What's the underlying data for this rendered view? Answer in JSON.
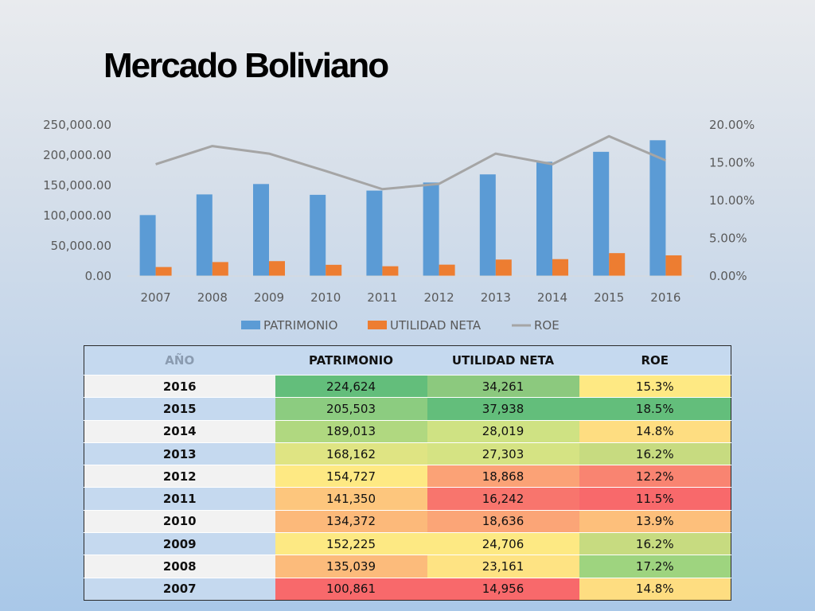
{
  "title": "Mercado Boliviano",
  "chart_data": {
    "type": "bar",
    "categories": [
      "2007",
      "2008",
      "2009",
      "2010",
      "2011",
      "2012",
      "2013",
      "2014",
      "2015",
      "2016"
    ],
    "series": [
      {
        "name": "PATRIMONIO",
        "kind": "bar",
        "axis": "left",
        "color": "#5b9bd5",
        "values": [
          100861,
          135039,
          152225,
          134372,
          141350,
          154727,
          168162,
          189013,
          205503,
          224624
        ]
      },
      {
        "name": "UTILIDAD NETA",
        "kind": "bar",
        "axis": "left",
        "color": "#ed7d31",
        "values": [
          14956,
          23161,
          24706,
          18636,
          16242,
          18868,
          27303,
          28019,
          37938,
          34261
        ]
      },
      {
        "name": "ROE",
        "kind": "line",
        "axis": "right",
        "color": "#a5a5a5",
        "values": [
          14.8,
          17.2,
          16.2,
          13.9,
          11.5,
          12.2,
          16.2,
          14.8,
          18.5,
          15.3
        ]
      }
    ],
    "left_axis": {
      "ticks": [
        "0.00",
        "50,000.00",
        "100,000.00",
        "150,000.00",
        "200,000.00",
        "250,000.00"
      ],
      "range": [
        0,
        250000
      ]
    },
    "right_axis": {
      "ticks": [
        "0.00%",
        "5.00%",
        "10.00%",
        "15.00%",
        "20.00%"
      ],
      "range": [
        0,
        20
      ]
    },
    "legend_position": "bottom",
    "grid": false
  },
  "table": {
    "headers": [
      "AÑO",
      "PATRIMONIO",
      "UTILIDAD NETA",
      "ROE"
    ],
    "rows": [
      {
        "year": "2016",
        "patrimonio": "224,624",
        "utilidad": "34,261",
        "roe": "15.3%"
      },
      {
        "year": "2015",
        "patrimonio": "205,503",
        "utilidad": "37,938",
        "roe": "18.5%"
      },
      {
        "year": "2014",
        "patrimonio": "189,013",
        "utilidad": "28,019",
        "roe": "14.8%"
      },
      {
        "year": "2013",
        "patrimonio": "168,162",
        "utilidad": "27,303",
        "roe": "16.2%"
      },
      {
        "year": "2012",
        "patrimonio": "154,727",
        "utilidad": "18,868",
        "roe": "12.2%"
      },
      {
        "year": "2011",
        "patrimonio": "141,350",
        "utilidad": "16,242",
        "roe": "11.5%"
      },
      {
        "year": "2010",
        "patrimonio": "134,372",
        "utilidad": "18,636",
        "roe": "13.9%"
      },
      {
        "year": "2009",
        "patrimonio": "152,225",
        "utilidad": "24,706",
        "roe": "16.2%"
      },
      {
        "year": "2008",
        "patrimonio": "135,039",
        "utilidad": "23,161",
        "roe": "17.2%"
      },
      {
        "year": "2007",
        "patrimonio": "100,861",
        "utilidad": "14,956",
        "roe": "14.8%"
      }
    ],
    "row_colors": [
      {
        "year": "#f2f2f2",
        "patrimonio": "#63be7b",
        "utilidad": "#8cc97e",
        "roe": "#fee983"
      },
      {
        "year": "#c5d9ef",
        "patrimonio": "#8ccc80",
        "utilidad": "#63be7b",
        "roe": "#63be7b"
      },
      {
        "year": "#f2f2f2",
        "patrimonio": "#b0d880",
        "utilidad": "#cfe283",
        "roe": "#fedd81"
      },
      {
        "year": "#c5d9ef",
        "patrimonio": "#dfe483",
        "utilidad": "#d5e383",
        "roe": "#c7db80"
      },
      {
        "year": "#f2f2f2",
        "patrimonio": "#fee983",
        "utilidad": "#fba276",
        "roe": "#f98471"
      },
      {
        "year": "#c5d9ef",
        "patrimonio": "#fdc67d",
        "utilidad": "#f8756d",
        "roe": "#f8696b"
      },
      {
        "year": "#f2f2f2",
        "patrimonio": "#fcb97a",
        "utilidad": "#fba577",
        "roe": "#fdbf7b"
      },
      {
        "year": "#c5d9ef",
        "patrimonio": "#fde983",
        "utilidad": "#fde983",
        "roe": "#c7db80"
      },
      {
        "year": "#f2f2f2",
        "patrimonio": "#fcbb7b",
        "utilidad": "#fee383",
        "roe": "#9ed47f"
      },
      {
        "year": "#c5d9ef",
        "patrimonio": "#f8696b",
        "utilidad": "#f8696b",
        "roe": "#fedd81"
      }
    ]
  }
}
